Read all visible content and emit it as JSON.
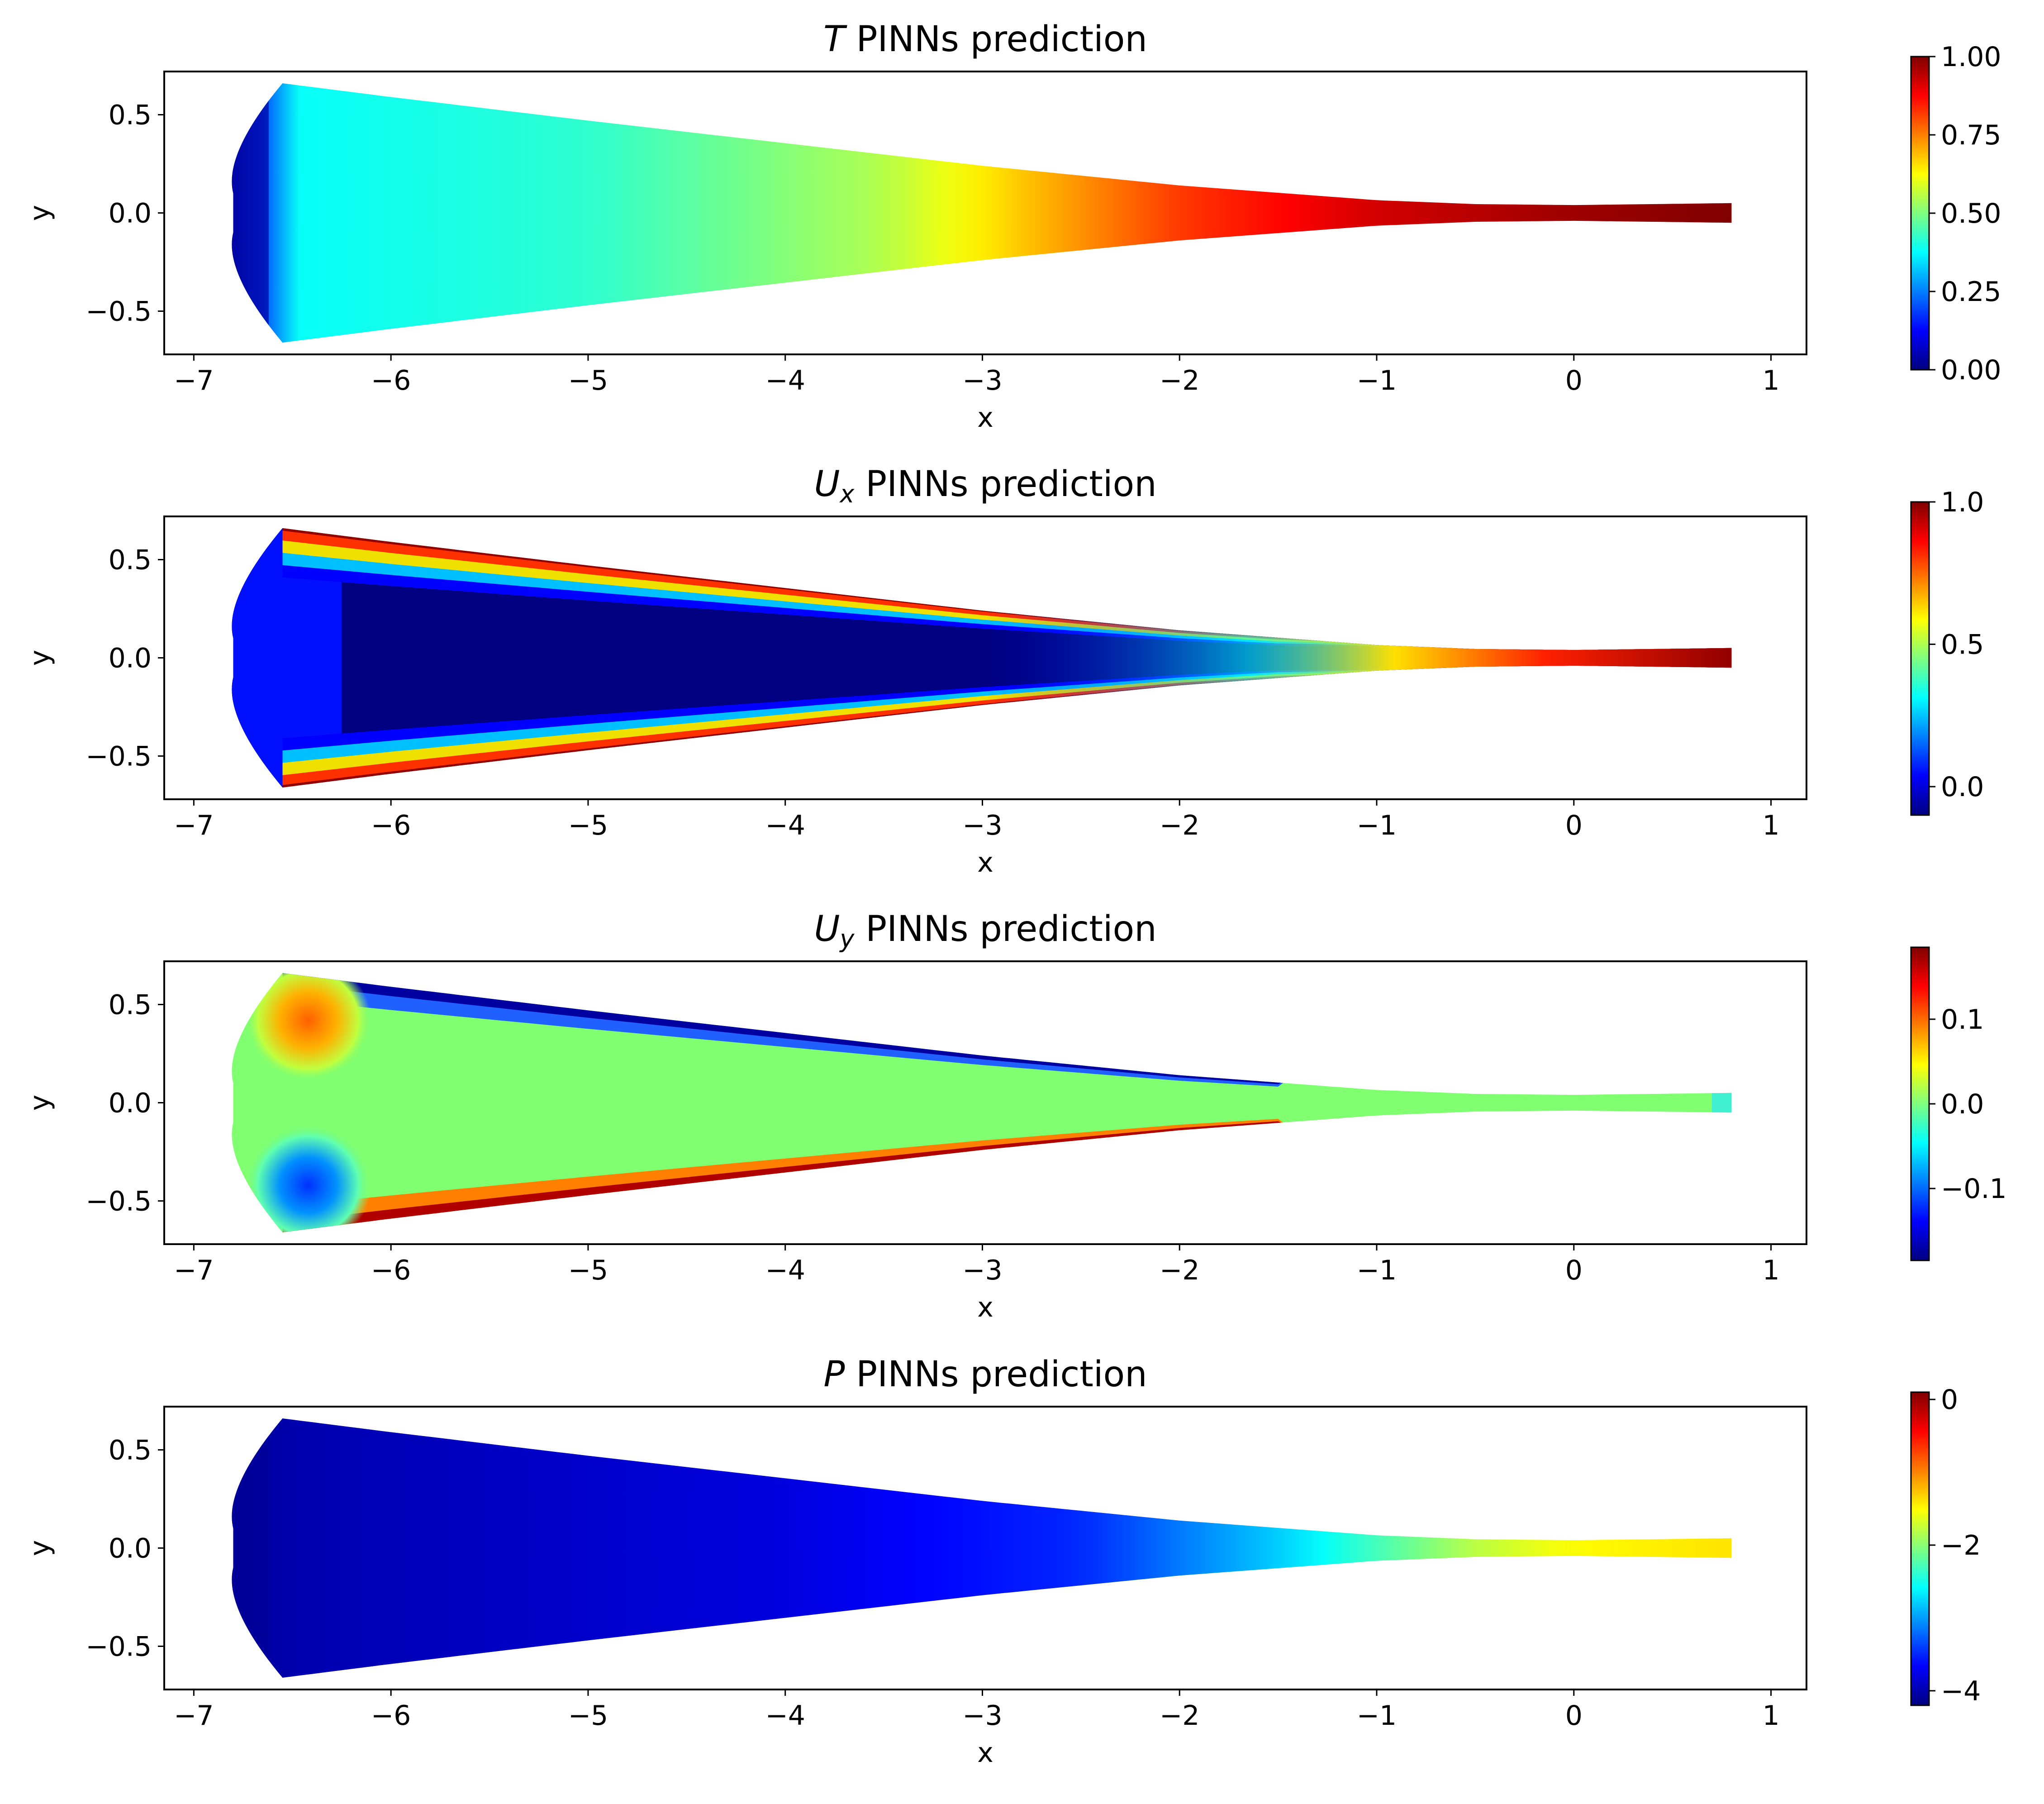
{
  "chart_data": [
    {
      "type": "heatmap",
      "title_var": "T",
      "title_sub": "",
      "title_rest": " PINNs prediction",
      "xlabel": "x",
      "ylabel": "y",
      "xlim": [
        -7.15,
        1.18
      ],
      "ylim": [
        -0.72,
        0.72
      ],
      "xticks": [
        -7,
        -6,
        -5,
        -4,
        -3,
        -2,
        -1,
        0,
        1
      ],
      "xtick_labels": [
        "−7",
        "−6",
        "−5",
        "−4",
        "−3",
        "−2",
        "−1",
        "0",
        "1"
      ],
      "yticks": [
        0.5,
        0.0,
        -0.5
      ],
      "ytick_labels": [
        "0.5",
        "0.0",
        "−0.5"
      ],
      "colormap": "jet",
      "colorbar": {
        "min": 0.0,
        "max": 1.0,
        "ticks": [
          0.0,
          0.25,
          0.5,
          0.75,
          1.0
        ],
        "tick_labels": [
          "0.00",
          "0.25",
          "0.50",
          "0.75",
          "1.00"
        ]
      },
      "field": "T",
      "field_profile": {
        "x": [
          -6.8,
          -6.5,
          -5.0,
          -3.5,
          -2.8,
          -2.0,
          -1.0,
          0.0,
          0.8
        ],
        "value": [
          0.03,
          0.38,
          0.42,
          0.55,
          0.68,
          0.82,
          0.92,
          0.97,
          1.0
        ]
      }
    },
    {
      "type": "heatmap",
      "title_var": "U",
      "title_sub": "x",
      "title_rest": " PINNs prediction",
      "xlabel": "x",
      "ylabel": "y",
      "xlim": [
        -7.15,
        1.18
      ],
      "ylim": [
        -0.72,
        0.72
      ],
      "xticks": [
        -7,
        -6,
        -5,
        -4,
        -3,
        -2,
        -1,
        0,
        1
      ],
      "xtick_labels": [
        "−7",
        "−6",
        "−5",
        "−4",
        "−3",
        "−2",
        "−1",
        "0",
        "1"
      ],
      "yticks": [
        0.5,
        0.0,
        -0.5
      ],
      "ytick_labels": [
        "0.5",
        "0.0",
        "−0.5"
      ],
      "colormap": "jet",
      "colorbar": {
        "min": -0.1,
        "max": 1.0,
        "ticks": [
          0.0,
          0.5,
          1.0
        ],
        "tick_labels": [
          "0.0",
          "0.5",
          "1.0"
        ]
      },
      "field": "Ux"
    },
    {
      "type": "heatmap",
      "title_var": "U",
      "title_sub": "y",
      "title_rest": " PINNs prediction",
      "xlabel": "x",
      "ylabel": "y",
      "xlim": [
        -7.15,
        1.18
      ],
      "ylim": [
        -0.72,
        0.72
      ],
      "xticks": [
        -7,
        -6,
        -5,
        -4,
        -3,
        -2,
        -1,
        0,
        1
      ],
      "xtick_labels": [
        "−7",
        "−6",
        "−5",
        "−4",
        "−3",
        "−2",
        "−1",
        "0",
        "1"
      ],
      "yticks": [
        0.5,
        0.0,
        -0.5
      ],
      "ytick_labels": [
        "0.5",
        "0.0",
        "−0.5"
      ],
      "colormap": "jet",
      "colorbar": {
        "min": -0.185,
        "max": 0.185,
        "ticks": [
          0.1,
          0.0,
          -0.1
        ],
        "tick_labels": [
          "0.1",
          "0.0",
          "−0.1"
        ]
      },
      "field": "Uy"
    },
    {
      "type": "heatmap",
      "title_var": "P",
      "title_sub": "",
      "title_rest": " PINNs prediction",
      "xlabel": "x",
      "ylabel": "y",
      "xlim": [
        -7.15,
        1.18
      ],
      "ylim": [
        -0.72,
        0.72
      ],
      "xticks": [
        -7,
        -6,
        -5,
        -4,
        -3,
        -2,
        -1,
        0,
        1
      ],
      "xtick_labels": [
        "−7",
        "−6",
        "−5",
        "−4",
        "−3",
        "−2",
        "−1",
        "0",
        "1"
      ],
      "yticks": [
        0.5,
        0.0,
        -0.5
      ],
      "ytick_labels": [
        "0.5",
        "0.0",
        "−0.5"
      ],
      "colormap": "jet",
      "colorbar": {
        "min": -4.2,
        "max": 0.1,
        "ticks": [
          0,
          -2,
          -4
        ],
        "tick_labels": [
          "0",
          "−2",
          "−4"
        ]
      },
      "field": "P",
      "field_profile": {
        "x": [
          -6.8,
          -6.5,
          -4.0,
          -2.5,
          -1.5,
          -1.0,
          -0.5,
          0.0,
          0.8
        ],
        "value": [
          -4.1,
          -4.0,
          -3.8,
          -3.5,
          -2.8,
          -2.3,
          -1.8,
          -1.5,
          -1.4
        ]
      }
    }
  ],
  "colors": {
    "jet": [
      "#00007f",
      "#0000ff",
      "#007fff",
      "#00ffff",
      "#7fff7f",
      "#ffff00",
      "#ff7f00",
      "#ff0000",
      "#7f0000"
    ]
  }
}
